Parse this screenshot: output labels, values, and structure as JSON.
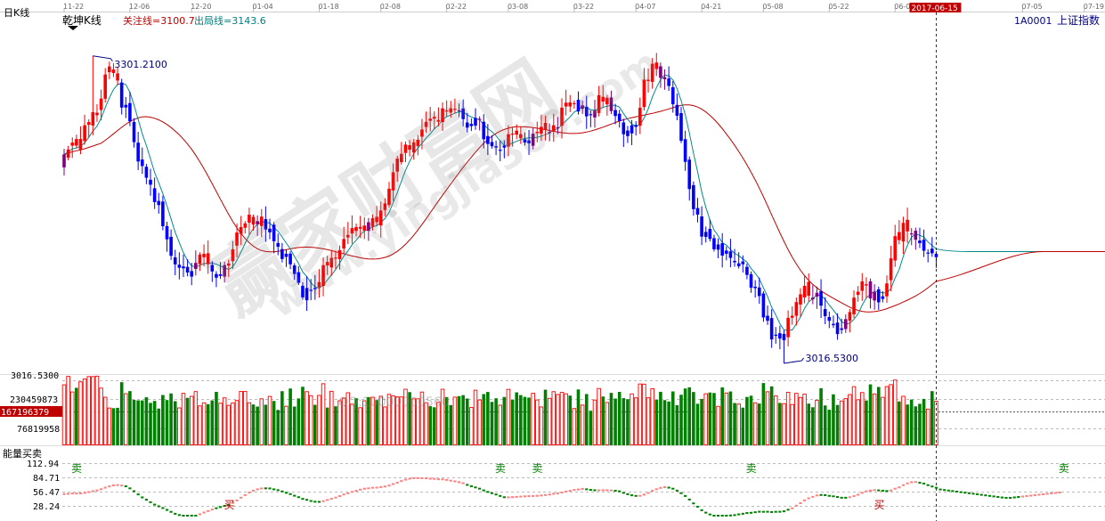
{
  "header": {
    "period_label": "日K线",
    "indicator_name": "乾坤K线",
    "focus_line_label": "关注线=3100.7",
    "exit_line_label": "出局线=3143.6",
    "code": "1A0001",
    "index_name": "上证指数"
  },
  "crosshair_date": "2017-06-15",
  "volume_panel": {
    "tick_labels": [
      "230459873",
      "76819958"
    ],
    "current_label": "167196379",
    "top_label": "3016.5300"
  },
  "indicator_panel": {
    "title": "能量买卖",
    "tick_labels": [
      "112.94",
      "84.71",
      "56.47",
      "28.24"
    ],
    "signals": [
      {
        "label": "卖",
        "x": 0
      },
      {
        "label": "买",
        "x": 38
      },
      {
        "label": "卖",
        "x": 103
      },
      {
        "label": "卖",
        "x": 112
      },
      {
        "label": "卖",
        "x": 164
      },
      {
        "label": "买",
        "x": 196
      },
      {
        "label": "卖",
        "x": 240
      }
    ]
  },
  "watermark": {
    "text": "赢家财富网",
    "url": "www.yingjia360.com",
    "qq": "QQ:10000000560"
  },
  "chart_data": {
    "type": "candlestick",
    "x_ticks": [
      {
        "i": 0,
        "label": "11-22"
      },
      {
        "i": 16,
        "label": "12-06"
      },
      {
        "i": 31,
        "label": "12-20"
      },
      {
        "i": 46,
        "label": "01-04"
      },
      {
        "i": 62,
        "label": "01-18"
      },
      {
        "i": 77,
        "label": "02-08"
      },
      {
        "i": 93,
        "label": "02-22"
      },
      {
        "i": 108,
        "label": "03-08"
      },
      {
        "i": 124,
        "label": "03-22"
      },
      {
        "i": 139,
        "label": "04-07"
      },
      {
        "i": 155,
        "label": "04-21"
      },
      {
        "i": 170,
        "label": "05-08"
      },
      {
        "i": 186,
        "label": "05-22"
      },
      {
        "i": 202,
        "label": "06-07"
      },
      {
        "i": 233,
        "label": "07-05"
      },
      {
        "i": 248,
        "label": "07-19"
      }
    ],
    "crosshair_index": 212,
    "total_slots": 256,
    "price_range": [
      3000,
      3320
    ],
    "max_label": {
      "i": 7,
      "value": "3301.2100",
      "price": 3301.21
    },
    "min_label": {
      "i": 175,
      "value": "3016.5300",
      "price": 3016.53
    },
    "anchors": [
      [
        0,
        3210
      ],
      [
        4,
        3225
      ],
      [
        8,
        3250
      ],
      [
        10,
        3280
      ],
      [
        12,
        3292
      ],
      [
        14,
        3260
      ],
      [
        16,
        3245
      ],
      [
        18,
        3205
      ],
      [
        20,
        3190
      ],
      [
        24,
        3150
      ],
      [
        27,
        3105
      ],
      [
        30,
        3100
      ],
      [
        33,
        3120
      ],
      [
        36,
        3095
      ],
      [
        40,
        3105
      ],
      [
        42,
        3140
      ],
      [
        44,
        3150
      ],
      [
        47,
        3148
      ],
      [
        50,
        3143
      ],
      [
        52,
        3120
      ],
      [
        54,
        3113
      ],
      [
        56,
        3100
      ],
      [
        58,
        3082
      ],
      [
        60,
        3080
      ],
      [
        62,
        3098
      ],
      [
        64,
        3112
      ],
      [
        66,
        3120
      ],
      [
        68,
        3128
      ],
      [
        70,
        3140
      ],
      [
        72,
        3136
      ],
      [
        74,
        3140
      ],
      [
        78,
        3160
      ],
      [
        80,
        3190
      ],
      [
        82,
        3210
      ],
      [
        84,
        3220
      ],
      [
        86,
        3230
      ],
      [
        88,
        3240
      ],
      [
        90,
        3240
      ],
      [
        93,
        3250
      ],
      [
        96,
        3245
      ],
      [
        98,
        3232
      ],
      [
        100,
        3245
      ],
      [
        104,
        3215
      ],
      [
        107,
        3220
      ],
      [
        110,
        3230
      ],
      [
        112,
        3220
      ],
      [
        115,
        3235
      ],
      [
        118,
        3230
      ],
      [
        120,
        3240
      ],
      [
        123,
        3260
      ],
      [
        125,
        3255
      ],
      [
        128,
        3250
      ],
      [
        130,
        3260
      ],
      [
        133,
        3255
      ],
      [
        135,
        3240
      ],
      [
        137,
        3220
      ],
      [
        139,
        3240
      ],
      [
        141,
        3275
      ],
      [
        143,
        3290
      ],
      [
        145,
        3285
      ],
      [
        147,
        3275
      ],
      [
        149,
        3240
      ],
      [
        151,
        3200
      ],
      [
        153,
        3165
      ],
      [
        155,
        3140
      ],
      [
        157,
        3130
      ],
      [
        159,
        3120
      ],
      [
        162,
        3115
      ],
      [
        165,
        3105
      ],
      [
        168,
        3085
      ],
      [
        170,
        3065
      ],
      [
        172,
        3045
      ],
      [
        174,
        3035
      ],
      [
        176,
        3055
      ],
      [
        178,
        3072
      ],
      [
        180,
        3085
      ],
      [
        183,
        3075
      ],
      [
        186,
        3060
      ],
      [
        188,
        3040
      ],
      [
        190,
        3058
      ],
      [
        192,
        3080
      ],
      [
        194,
        3090
      ],
      [
        196,
        3078
      ],
      [
        198,
        3075
      ],
      [
        200,
        3095
      ],
      [
        202,
        3130
      ],
      [
        204,
        3140
      ],
      [
        206,
        3135
      ],
      [
        208,
        3128
      ],
      [
        210,
        3122
      ],
      [
        212,
        3118
      ]
    ],
    "overlay_lines": {
      "fast": {
        "color": "#008b8b",
        "flat_value": 3120
      },
      "slow": {
        "color": "#c00000",
        "flat_value": 3120
      }
    },
    "volume_range": [
      0,
      270000000
    ],
    "colors": {
      "up": "#ff0000",
      "down": "#0000ff",
      "mixed": "#800080",
      "vol_up": "#ff0000",
      "vol_down": "#008000",
      "indicator_up": "#ff8080",
      "indicator_down": "#008000",
      "crosshair_tag": "#c00000",
      "label_line": "#000080"
    }
  }
}
